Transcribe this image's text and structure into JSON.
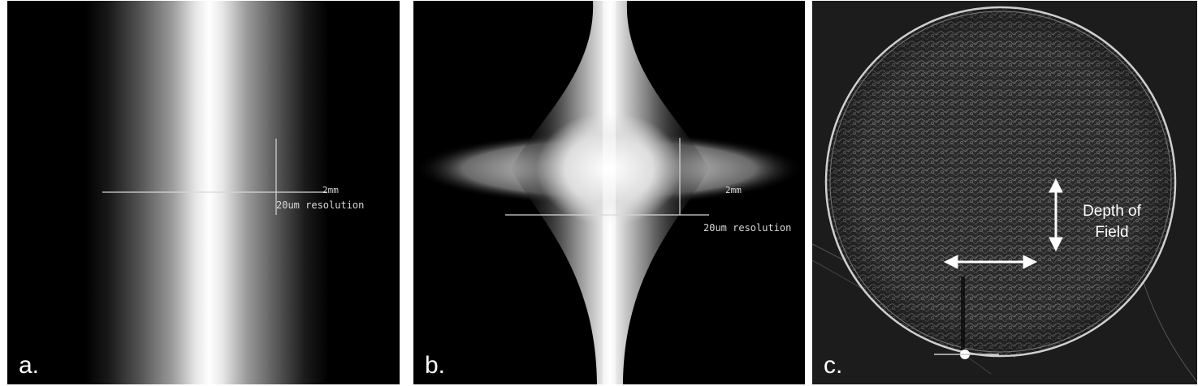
{
  "panels": {
    "a": {
      "letter": "a.",
      "scale_label": "2mm",
      "resolution_label": "20um resolution"
    },
    "b": {
      "letter": "b.",
      "scale_label": "2mm",
      "resolution_label": "20um resolution"
    },
    "c": {
      "letter": "c.",
      "annotation": {
        "line1": "Depth of",
        "line2": "Field"
      }
    }
  }
}
